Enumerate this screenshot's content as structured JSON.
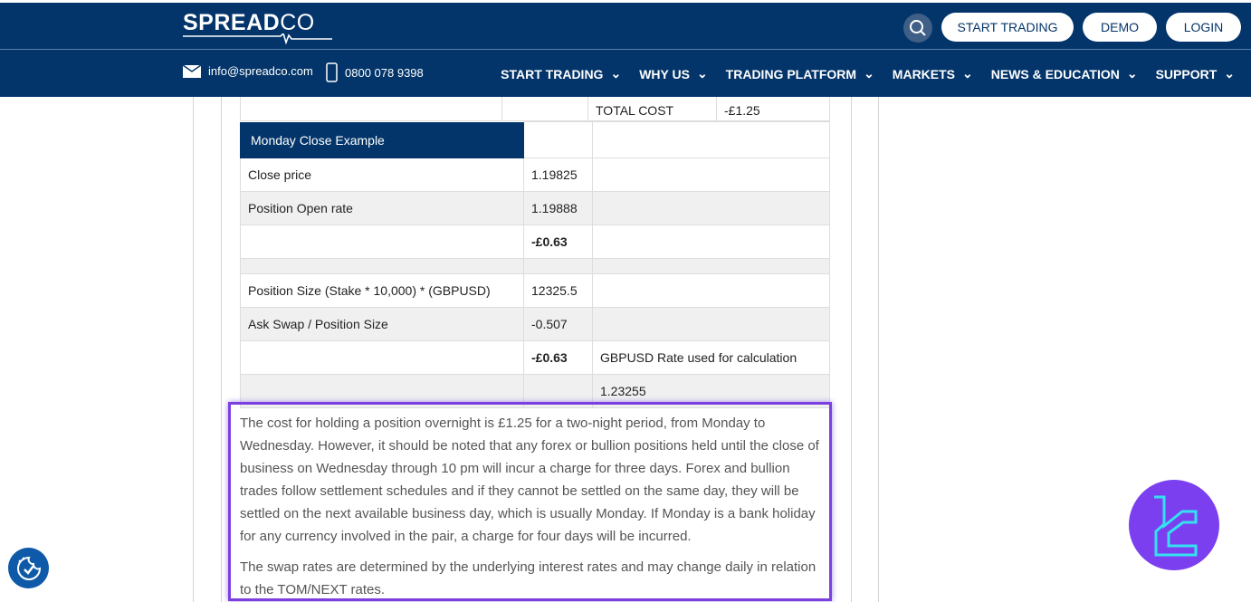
{
  "header": {
    "logo": {
      "main": "SPREAD",
      "suffix": "CO"
    },
    "buttons": [
      "START TRADING",
      "DEMO",
      "LOGIN"
    ],
    "email": "info@spreadco.com",
    "phone": "0800 078 9398",
    "nav": [
      "START TRADING",
      "WHY US",
      "TRADING PLATFORM",
      "MARKETS",
      "NEWS & EDUCATION",
      "SUPPORT"
    ]
  },
  "top_row": {
    "label": "TOTAL COST",
    "value": "-£1.25"
  },
  "table": {
    "header": "Monday Close Example",
    "rows": [
      {
        "label": "Close price",
        "value": "1.19825",
        "note": ""
      },
      {
        "label": "Position Open rate",
        "value": "1.19888",
        "note": ""
      },
      {
        "label": "",
        "value": "-£0.63",
        "note": ""
      },
      {
        "label": "",
        "value": "",
        "note": ""
      },
      {
        "label": "Position Size (Stake * 10,000) * (GBPUSD)",
        "value": "12325.5",
        "note": ""
      },
      {
        "label": "Ask Swap / Position Size",
        "value": "-0.507",
        "note": ""
      },
      {
        "label": "",
        "value": "-£0.63",
        "note": "GBPUSD Rate used for calculation"
      },
      {
        "label": "",
        "value": "",
        "note": "1.23255"
      }
    ]
  },
  "paragraphs": [
    "The cost for holding a position overnight is £1.25 for a two-night period, from Monday to Wednesday. However, it should be noted that any forex or bullion positions held until the close of business on Wednesday through 10 pm will incur a charge for three days. Forex and bullion trades follow settlement schedules and if they cannot be settled on the same day, they will be settled on the next available business day, which is usually Monday. If Monday is a bank holiday for any currency involved in the pair, a charge for four days will be incurred.",
    "The swap rates are determined by the underlying interest rates and may change daily in relation to the TOM/NEXT rates."
  ],
  "colors": {
    "brand": "#03356a",
    "highlight": "#7c3fe0",
    "badge": "#7b3ff0"
  }
}
